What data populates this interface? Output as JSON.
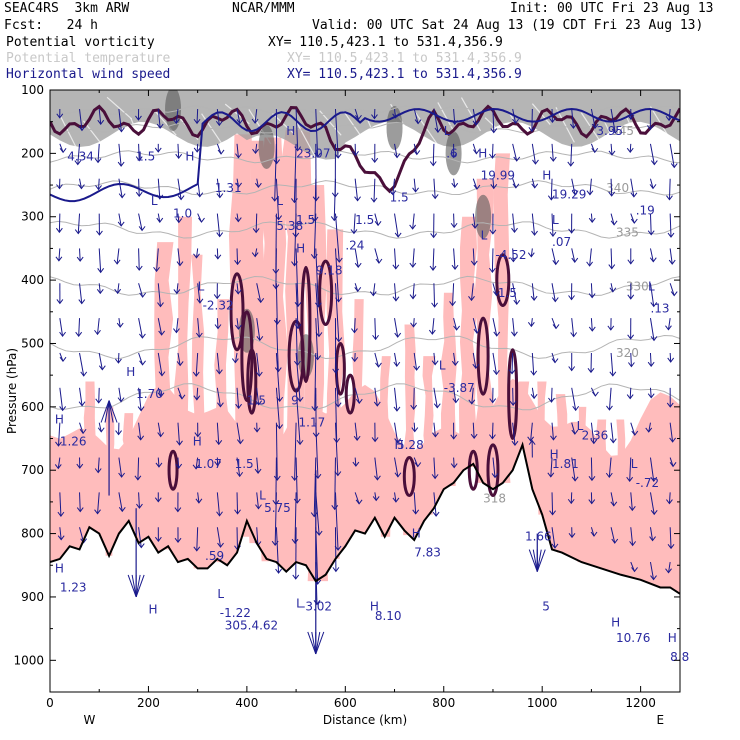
{
  "header": {
    "model": "SEAC4RS  3km ARW",
    "org": "NCAR/MMM",
    "init": "Init: 00 UTC Fri 23 Aug 13",
    "fcst": "Fcst:   24 h",
    "valid": "Valid: 00 UTC Sat 24 Aug 13 (19 CDT Fri 23 Aug 13)",
    "fields": [
      {
        "name": "Potential vorticity",
        "xy": "XY= 110.5,423.1 to 531.4,356.9",
        "color": "#000000"
      },
      {
        "name": "Potential temperature",
        "xy": "XY= 110.5,423.1 to 531.4,356.9",
        "color": "#c8c8c8"
      },
      {
        "name": "Horizontal wind speed",
        "xy": "XY= 110.5,423.1 to 531.4,356.9",
        "color": "#1a1a8c"
      }
    ]
  },
  "colors": {
    "pv_fill_low": "#ffbcbc",
    "pv_contour": "#4a0f3a",
    "tropopause": "#1a1a8c",
    "wind": "#1a1a8c",
    "isentrope": "#b4b4b4",
    "terrain": "#000000"
  },
  "chart_data": {
    "type": "cross-section",
    "xlabel": "Distance (km)",
    "ylabel": "Pressure (hPa)",
    "x_range": [
      0,
      1280
    ],
    "y_range": [
      100,
      1050
    ],
    "y_log": false,
    "x_ticks": [
      0,
      200,
      400,
      600,
      800,
      1000,
      1200
    ],
    "y_ticks": [
      100,
      200,
      300,
      400,
      500,
      600,
      700,
      800,
      900,
      1000
    ],
    "end_labels": {
      "left": "W",
      "right": "E"
    },
    "isentropes": [
      {
        "label": "345",
        "x": 1140,
        "p": 165
      },
      {
        "label": "340",
        "x": 1130,
        "p": 255
      },
      {
        "label": "335",
        "x": 1150,
        "p": 325
      },
      {
        "label": "330",
        "x": 1170,
        "p": 410
      },
      {
        "label": "320",
        "x": 1150,
        "p": 515
      },
      {
        "label": "318",
        "x": 880,
        "p": 745
      }
    ],
    "terrain_p": [
      [
        0,
        845
      ],
      [
        20,
        840
      ],
      [
        40,
        820
      ],
      [
        60,
        825
      ],
      [
        80,
        790
      ],
      [
        100,
        800
      ],
      [
        120,
        835
      ],
      [
        140,
        800
      ],
      [
        160,
        780
      ],
      [
        180,
        815
      ],
      [
        200,
        805
      ],
      [
        220,
        830
      ],
      [
        240,
        820
      ],
      [
        260,
        845
      ],
      [
        280,
        840
      ],
      [
        300,
        855
      ],
      [
        320,
        855
      ],
      [
        340,
        840
      ],
      [
        360,
        850
      ],
      [
        380,
        830
      ],
      [
        400,
        780
      ],
      [
        420,
        815
      ],
      [
        440,
        840
      ],
      [
        460,
        845
      ],
      [
        480,
        860
      ],
      [
        500,
        845
      ],
      [
        520,
        850
      ],
      [
        540,
        875
      ],
      [
        560,
        865
      ],
      [
        580,
        840
      ],
      [
        600,
        820
      ],
      [
        620,
        795
      ],
      [
        640,
        800
      ],
      [
        660,
        775
      ],
      [
        680,
        805
      ],
      [
        700,
        775
      ],
      [
        720,
        795
      ],
      [
        740,
        810
      ],
      [
        760,
        780
      ],
      [
        780,
        760
      ],
      [
        800,
        730
      ],
      [
        820,
        720
      ],
      [
        840,
        700
      ],
      [
        860,
        690
      ],
      [
        880,
        720
      ],
      [
        900,
        730
      ],
      [
        920,
        720
      ],
      [
        940,
        700
      ],
      [
        960,
        660
      ],
      [
        980,
        730
      ],
      [
        1000,
        770
      ],
      [
        1020,
        825
      ],
      [
        1040,
        830
      ],
      [
        1080,
        845
      ],
      [
        1120,
        855
      ],
      [
        1160,
        865
      ],
      [
        1200,
        873
      ],
      [
        1240,
        885
      ],
      [
        1260,
        885
      ],
      [
        1280,
        895
      ]
    ],
    "extrema": [
      {
        "t": "4.34",
        "x": 35,
        "p": 205
      },
      {
        "t": "1.5",
        "x": 175,
        "p": 205
      },
      {
        "t": "H",
        "x": 275,
        "p": 205
      },
      {
        "t": "1.31",
        "x": 335,
        "p": 255
      },
      {
        "t": "L",
        "x": 205,
        "p": 275
      },
      {
        "t": "1.0",
        "x": 250,
        "p": 295
      },
      {
        "t": "H",
        "x": 480,
        "p": 165
      },
      {
        "t": "23.07",
        "x": 500,
        "p": 200
      },
      {
        "t": "L",
        "x": 800,
        "p": 165
      },
      {
        "t": ".6",
        "x": 805,
        "p": 200
      },
      {
        "t": "1.5",
        "x": 690,
        "p": 270
      },
      {
        "t": "H",
        "x": 870,
        "p": 200
      },
      {
        "t": "19.99",
        "x": 875,
        "p": 235
      },
      {
        "t": "H",
        "x": 1000,
        "p": 235
      },
      {
        "t": "19.29",
        "x": 1020,
        "p": 265
      },
      {
        "t": "3.95",
        "x": 1110,
        "p": 165
      },
      {
        "t": ".19",
        "x": 1190,
        "p": 290
      },
      {
        "t": "L",
        "x": 460,
        "p": 275
      },
      {
        "t": "5.38",
        "x": 460,
        "p": 315
      },
      {
        "t": "1.5",
        "x": 500,
        "p": 305
      },
      {
        "t": "1.5",
        "x": 620,
        "p": 305
      },
      {
        "t": ".24",
        "x": 600,
        "p": 345
      },
      {
        "t": "H",
        "x": 500,
        "p": 350
      },
      {
        "t": "9.18",
        "x": 540,
        "p": 385
      },
      {
        "t": "L",
        "x": 875,
        "p": 330
      },
      {
        "t": "-4.52",
        "x": 905,
        "p": 360
      },
      {
        "t": "L",
        "x": 1020,
        "p": 305
      },
      {
        "t": ".07",
        "x": 1020,
        "p": 340
      },
      {
        "t": "1.5",
        "x": 910,
        "p": 420
      },
      {
        "t": "L",
        "x": 300,
        "p": 410
      },
      {
        "t": "-2.32",
        "x": 310,
        "p": 440
      },
      {
        "t": "L",
        "x": 1215,
        "p": 410
      },
      {
        "t": ".13",
        "x": 1220,
        "p": 445
      },
      {
        "t": "H",
        "x": 155,
        "p": 545
      },
      {
        "t": "1.70",
        "x": 175,
        "p": 580
      },
      {
        "t": "L",
        "x": 790,
        "p": 535
      },
      {
        "t": "-3.87",
        "x": 800,
        "p": 570
      },
      {
        "t": "1.5",
        "x": 400,
        "p": 590
      },
      {
        "t": "9",
        "x": 490,
        "p": 590
      },
      {
        "t": "1.17",
        "x": 505,
        "p": 625
      },
      {
        "t": "H",
        "x": 10,
        "p": 620
      },
      {
        "t": "1.26",
        "x": 20,
        "p": 655
      },
      {
        "t": "H",
        "x": 290,
        "p": 655
      },
      {
        "t": "1.07",
        "x": 295,
        "p": 690
      },
      {
        "t": "1.5",
        "x": 375,
        "p": 690
      },
      {
        "t": "H",
        "x": 700,
        "p": 660
      },
      {
        "t": "5.28",
        "x": 705,
        "p": 660
      },
      {
        "t": "L",
        "x": 1070,
        "p": 630
      },
      {
        "t": "2.36",
        "x": 1080,
        "p": 645
      },
      {
        "t": "H",
        "x": 1015,
        "p": 675
      },
      {
        "t": "1.81",
        "x": 1020,
        "p": 690
      },
      {
        "t": "L",
        "x": 1180,
        "p": 690
      },
      {
        "t": "-.72",
        "x": 1190,
        "p": 720
      },
      {
        "t": "L",
        "x": 425,
        "p": 740
      },
      {
        "t": "5.75",
        "x": 435,
        "p": 760
      },
      {
        "t": "H",
        "x": 735,
        "p": 800
      },
      {
        "t": "7.83",
        "x": 740,
        "p": 830
      },
      {
        "t": "1.66",
        "x": 965,
        "p": 805
      },
      {
        "t": ".59",
        "x": 315,
        "p": 835
      },
      {
        "t": "H",
        "x": 10,
        "p": 855
      },
      {
        "t": "1.23",
        "x": 20,
        "p": 885
      },
      {
        "t": "L",
        "x": 340,
        "p": 895
      },
      {
        "t": "-1.22",
        "x": 345,
        "p": 925
      },
      {
        "t": "L",
        "x": 500,
        "p": 910
      },
      {
        "t": "-3.02",
        "x": 510,
        "p": 915
      },
      {
        "t": "H",
        "x": 650,
        "p": 915
      },
      {
        "t": "8.10",
        "x": 660,
        "p": 930
      },
      {
        "t": "H",
        "x": 200,
        "p": 920
      },
      {
        "t": "305.4.62",
        "x": 355,
        "p": 945
      },
      {
        "t": "5",
        "x": 1000,
        "p": 915
      },
      {
        "t": "H",
        "x": 1140,
        "p": 940
      },
      {
        "t": "10.76",
        "x": 1150,
        "p": 965
      },
      {
        "t": "H",
        "x": 1255,
        "p": 965
      },
      {
        "t": "8.8",
        "x": 1260,
        "p": 995
      }
    ]
  }
}
